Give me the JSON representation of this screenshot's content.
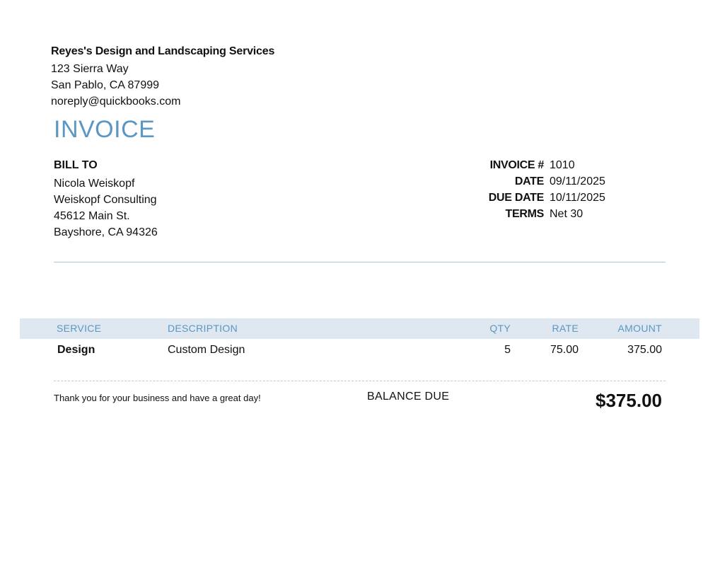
{
  "company": {
    "name": "Reyes's Design and Landscaping Services",
    "address_line1": "123 Sierra Way",
    "address_line2": "San Pablo, CA  87999",
    "email": "noreply@quickbooks.com"
  },
  "document_title": "INVOICE",
  "bill_to": {
    "heading": "BILL TO",
    "name": "Nicola Weiskopf",
    "company": "Weiskopf Consulting",
    "address_line1": "45612 Main St.",
    "address_line2": "Bayshore, CA  94326"
  },
  "invoice_meta": {
    "number_label": "INVOICE #",
    "number": "1010",
    "date_label": "DATE",
    "date": "09/11/2025",
    "due_date_label": "DUE DATE",
    "due_date": "10/11/2025",
    "terms_label": "TERMS",
    "terms": "Net 30"
  },
  "line_items": {
    "columns": [
      "SERVICE",
      "DESCRIPTION",
      "QTY",
      "RATE",
      "AMOUNT"
    ],
    "rows": [
      {
        "service": "Design",
        "description": "Custom Design",
        "qty": "5",
        "rate": "75.00",
        "amount": "375.00"
      }
    ]
  },
  "footer": {
    "message": "Thank you for your business and have a great day!",
    "balance_label": "BALANCE DUE",
    "balance_amount": "$375.00"
  },
  "colors": {
    "accent": "#5a97c3",
    "table_header_bg": "#dfe8f0",
    "rule": "#a8c6dc"
  }
}
